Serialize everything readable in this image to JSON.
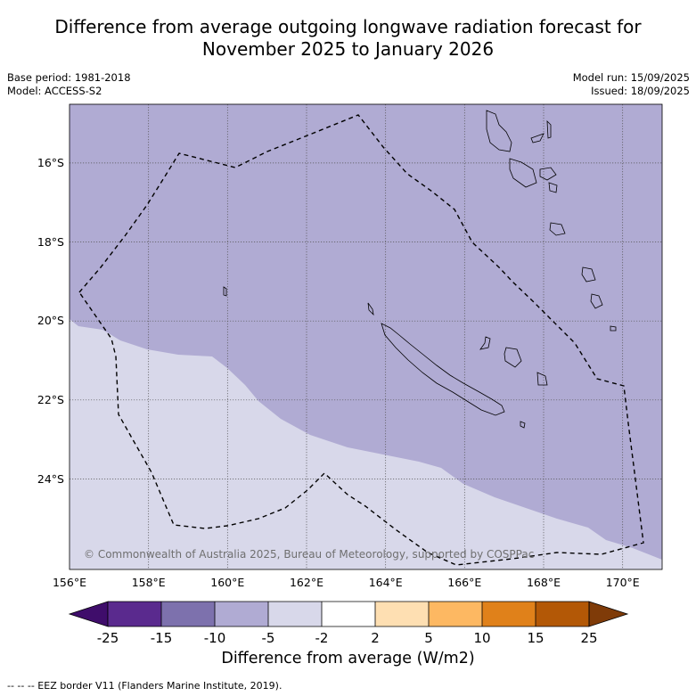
{
  "title": {
    "line1": "Difference from average outgoing longwave radiation forecast for",
    "line2": "November 2025 to January 2026"
  },
  "meta": {
    "base_period": "Base period: 1981-2018",
    "model": "Model: ACCESS-S2",
    "model_run": "Model run: 15/09/2025",
    "issued": "Issued: 18/09/2025"
  },
  "map": {
    "lon_range": [
      156,
      171
    ],
    "lat_range": [
      -26.1,
      -14.7
    ],
    "lon_ticks": [
      "156°E",
      "158°E",
      "160°E",
      "162°E",
      "164°E",
      "166°E",
      "168°E",
      "170°E"
    ],
    "lat_ticks": [
      "16°S",
      "18°S",
      "20°S",
      "22°S",
      "24°S"
    ],
    "copyright": "© Commonwealth of Australia 2025, Bureau of Meteorology, supported by COSPPac",
    "fill_colors": {
      "minus10_minus5": "#b0abd3",
      "minus5_minus2": "#d8d8ea"
    }
  },
  "colorbar": {
    "ticks": [
      "-25",
      "-15",
      "-10",
      "-5",
      "-2",
      "2",
      "5",
      "10",
      "15",
      "25"
    ],
    "colors": [
      "#3f0d6b",
      "#5a2a8e",
      "#7d71ad",
      "#b0abd3",
      "#d8d8ea",
      "#ffffff",
      "#fedfb2",
      "#fdb862",
      "#e0811a",
      "#b35806",
      "#7f3b08"
    ],
    "label": "Difference from average (W/m2)"
  },
  "footer": "--  --  -- EEZ border V11 (Flanders Marine Institute, 2019)."
}
